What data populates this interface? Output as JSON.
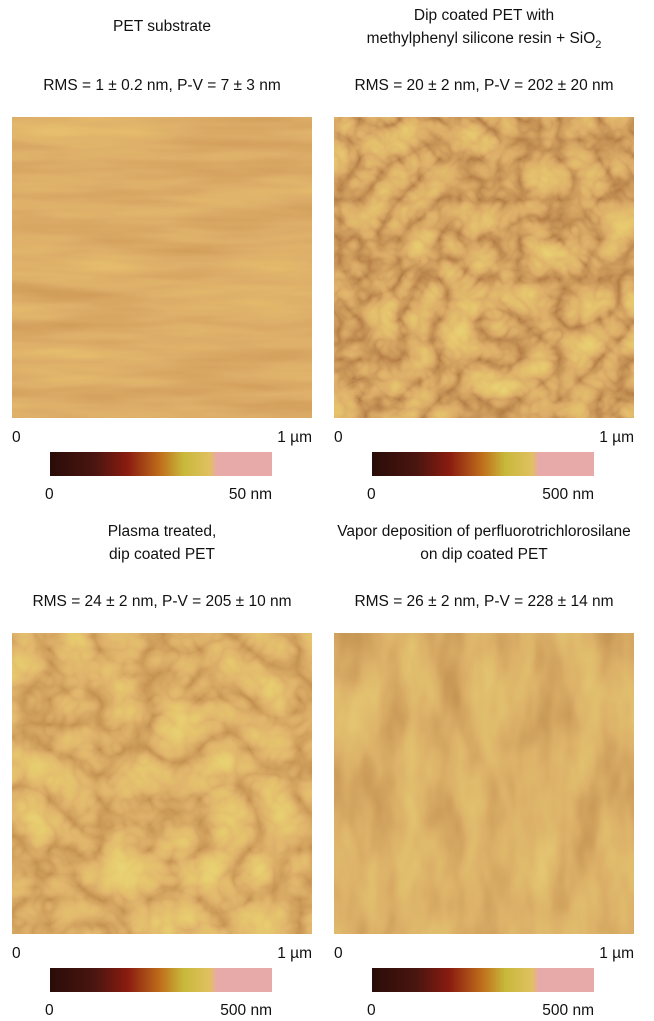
{
  "panels": [
    {
      "title_lines": [
        "PET substrate"
      ],
      "stats": "RMS = 1 ± 0.2 nm, P-V = 7 ± 3 nm",
      "x_start": "0",
      "x_end": "1 µm",
      "scale_min": "0",
      "scale_max": "50 nm"
    },
    {
      "title_lines": [
        "Dip coated PET with",
        "methylphenyl silicone resin + SiO"
      ],
      "title_subscript": "2",
      "stats": "RMS = 20 ± 2 nm, P-V = 202 ± 20 nm",
      "x_start": "0",
      "x_end": "1 µm",
      "scale_min": "0",
      "scale_max": "500 nm"
    },
    {
      "title_lines": [
        "Plasma treated,",
        "dip coated PET"
      ],
      "stats": "RMS = 24 ± 2 nm, P-V = 205 ± 10 nm",
      "x_start": "0",
      "x_end": "1 µm",
      "scale_min": "0",
      "scale_max": "500 nm"
    },
    {
      "title_lines": [
        "Vapor deposition of perfluorotrichlorosilane",
        "on dip coated PET"
      ],
      "stats": "RMS = 26 ± 2 nm, P-V = 228 ± 14 nm",
      "x_start": "0",
      "x_end": "1 µm",
      "scale_min": "0",
      "scale_max": "500 nm"
    }
  ]
}
